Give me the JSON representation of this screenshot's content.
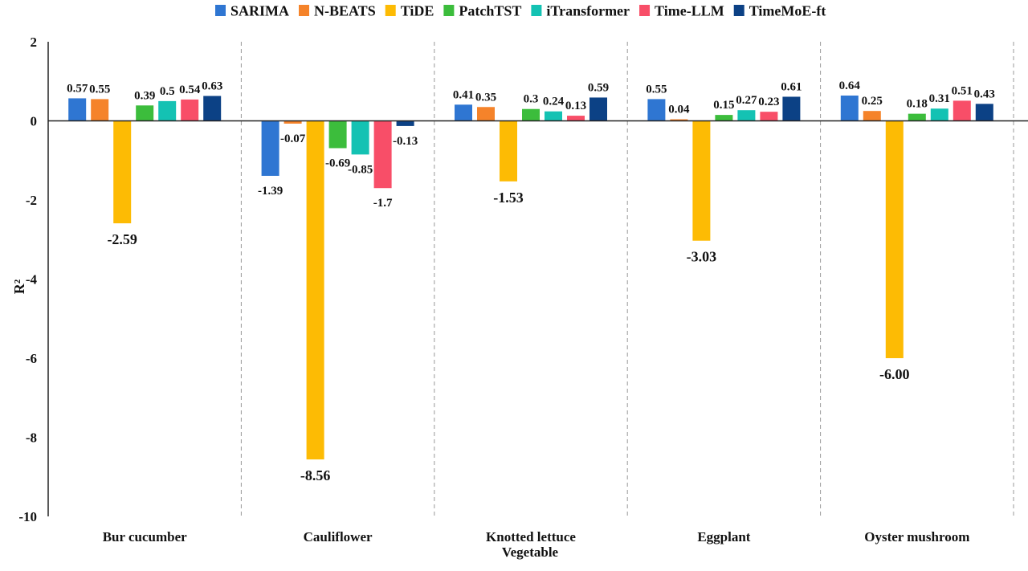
{
  "chart_data": {
    "type": "bar",
    "title": "",
    "xlabel": "Vegetable",
    "ylabel": "R²",
    "ylim": [
      -10,
      2
    ],
    "yticks": [
      2,
      0,
      -2,
      -4,
      -6,
      -8,
      -10
    ],
    "ytick_labels": [
      "2",
      "0",
      "-2",
      "-4",
      "-6",
      "-8",
      "-10"
    ],
    "grid": false,
    "group_separators": "dashed vertical lines",
    "legend_position": "top-center",
    "categories": [
      "Bur cucumber",
      "Cauliflower",
      "Knotted lettuce",
      "Eggplant",
      "Oyster mushroom"
    ],
    "series": [
      {
        "name": "SARIMA",
        "color": "#2f76d2",
        "values": [
          0.57,
          -1.39,
          0.41,
          0.55,
          0.64
        ],
        "labels": [
          "0.57",
          "-1.39",
          "0.41",
          "0.55",
          "0.64"
        ]
      },
      {
        "name": "N-BEATS",
        "color": "#f5832a",
        "values": [
          0.55,
          -0.07,
          0.35,
          0.04,
          0.25
        ],
        "labels": [
          "0.55",
          "-0.07",
          "0.35",
          "0.04",
          "0.25"
        ]
      },
      {
        "name": "TiDE",
        "color": "#fdbb04",
        "values": [
          -2.59,
          -8.56,
          -1.53,
          -3.03,
          -6.0
        ],
        "labels": [
          "-2.59",
          "-8.56",
          "-1.53",
          "-3.03",
          "-6.00"
        ]
      },
      {
        "name": "PatchTST",
        "color": "#3cbd3c",
        "values": [
          0.39,
          -0.69,
          0.3,
          0.15,
          0.18
        ],
        "labels": [
          "0.39",
          "-0.69",
          "0.3",
          "0.15",
          "0.18"
        ]
      },
      {
        "name": "iTransformer",
        "color": "#14c2b3",
        "values": [
          0.5,
          -0.85,
          0.24,
          0.27,
          0.31
        ],
        "labels": [
          "0.5",
          "-0.85",
          "0.24",
          "0.27",
          "0.31"
        ]
      },
      {
        "name": "Time-LLM",
        "color": "#f84e68",
        "values": [
          0.54,
          -1.7,
          0.13,
          0.23,
          0.51
        ],
        "labels": [
          "0.54",
          "-1.7",
          "0.13",
          "0.23",
          "0.51"
        ]
      },
      {
        "name": "TimeMoE-ft",
        "color": "#0c4185",
        "values": [
          0.63,
          -0.13,
          0.59,
          0.61,
          0.43
        ],
        "labels": [
          "0.63",
          "-0.13",
          "0.59",
          "0.61",
          "0.43"
        ]
      }
    ]
  }
}
